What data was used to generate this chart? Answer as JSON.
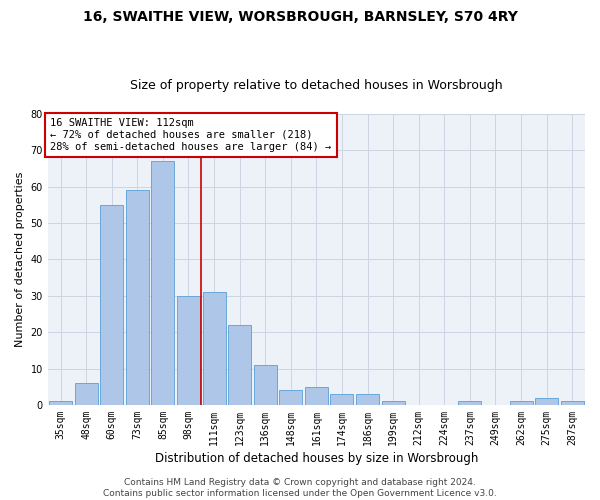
{
  "title1": "16, SWAITHE VIEW, WORSBROUGH, BARNSLEY, S70 4RY",
  "title2": "Size of property relative to detached houses in Worsbrough",
  "xlabel": "Distribution of detached houses by size in Worsbrough",
  "ylabel": "Number of detached properties",
  "categories": [
    "35sqm",
    "48sqm",
    "60sqm",
    "73sqm",
    "85sqm",
    "98sqm",
    "111sqm",
    "123sqm",
    "136sqm",
    "148sqm",
    "161sqm",
    "174sqm",
    "186sqm",
    "199sqm",
    "212sqm",
    "224sqm",
    "237sqm",
    "249sqm",
    "262sqm",
    "275sqm",
    "287sqm"
  ],
  "values": [
    1,
    6,
    55,
    59,
    67,
    30,
    31,
    22,
    11,
    4,
    5,
    3,
    3,
    1,
    0,
    0,
    1,
    0,
    1,
    2,
    1
  ],
  "bar_color": "#aec6e8",
  "bar_edge_color": "#5a9fd4",
  "vline_x": 5.5,
  "vline_color": "#cc0000",
  "annotation_line1": "16 SWAITHE VIEW: 112sqm",
  "annotation_line2": "← 72% of detached houses are smaller (218)",
  "annotation_line3": "28% of semi-detached houses are larger (84) →",
  "annotation_box_color": "#ffffff",
  "annotation_box_edge_color": "#cc0000",
  "ylim": [
    0,
    80
  ],
  "yticks": [
    0,
    10,
    20,
    30,
    40,
    50,
    60,
    70,
    80
  ],
  "grid_color": "#cdd5e3",
  "background_color": "#edf1f8",
  "footer_text": "Contains HM Land Registry data © Crown copyright and database right 2024.\nContains public sector information licensed under the Open Government Licence v3.0.",
  "title1_fontsize": 10,
  "title2_fontsize": 9,
  "xlabel_fontsize": 8.5,
  "ylabel_fontsize": 8,
  "tick_fontsize": 7,
  "annotation_fontsize": 7.5,
  "footer_fontsize": 6.5
}
